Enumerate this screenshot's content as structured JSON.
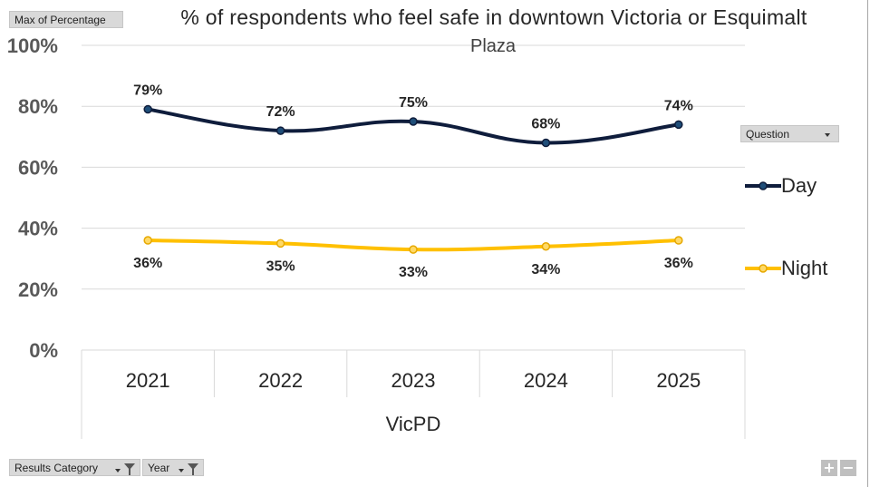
{
  "pivot": {
    "value_field": "Max of Percentage",
    "legend_field": "Question",
    "axis_field": "Results Category",
    "filter_field": "Year"
  },
  "colors": {
    "day": "#0f1d3c",
    "night": "#ffc000",
    "gridline": "#d9d9d9",
    "axis_text": "#595959"
  },
  "chart_data": {
    "type": "line",
    "title": "% of respondents who feel safe in downtown Victoria or Esquimalt Plaza",
    "title_line1": "% of respondents who feel safe in downtown Victoria or Esquimalt",
    "title_line2": "Plaza",
    "categories": [
      "2021",
      "2022",
      "2023",
      "2024",
      "2025"
    ],
    "group_label": "VicPD",
    "y_ticks": [
      "0%",
      "20%",
      "40%",
      "60%",
      "80%",
      "100%"
    ],
    "ylim": [
      0,
      100
    ],
    "series": [
      {
        "name": "Day",
        "values": [
          79,
          72,
          75,
          68,
          74
        ],
        "labels": [
          "79%",
          "72%",
          "75%",
          "68%",
          "74%"
        ]
      },
      {
        "name": "Night",
        "values": [
          36,
          35,
          33,
          34,
          36
        ],
        "labels": [
          "36%",
          "35%",
          "33%",
          "34%",
          "36%"
        ]
      }
    ],
    "legend_position": "right"
  },
  "zoom": {
    "plus": "+",
    "minus": "−"
  }
}
